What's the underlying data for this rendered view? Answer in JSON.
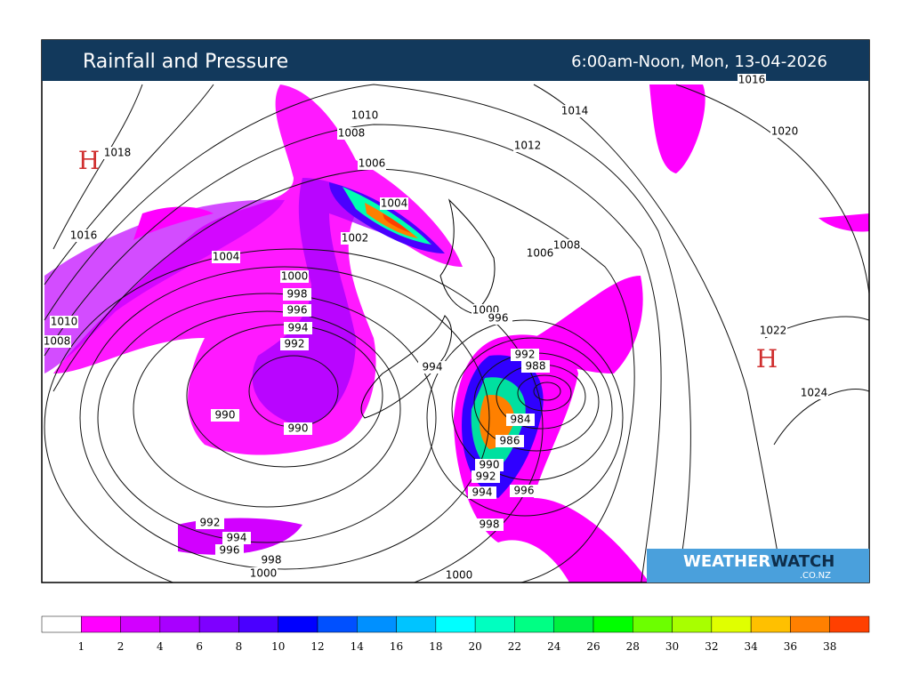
{
  "header": {
    "title": "Rainfall and Pressure",
    "period": "6:00am-Noon, Mon, 13-04-2026"
  },
  "highs": [
    "H",
    "H"
  ],
  "isobar_labels": [
    1010,
    1008,
    1006,
    1004,
    1002,
    1004,
    1000,
    998,
    996,
    994,
    992,
    990,
    990,
    994,
    1000,
    996,
    1018,
    1016,
    1010,
    1008,
    1012,
    1014,
    1020,
    1022,
    1024,
    1008,
    1006,
    992,
    988,
    984,
    986,
    990,
    992,
    994,
    996,
    998,
    992,
    994,
    996,
    998,
    1000,
    1000,
    1016
  ],
  "logo": {
    "part1": "WEATHER",
    "part2": "WATCH",
    "domain": ".CO.NZ"
  },
  "legend": {
    "ticks": [
      1,
      2,
      4,
      6,
      8,
      10,
      12,
      14,
      16,
      18,
      20,
      22,
      24,
      26,
      28,
      30,
      32,
      34,
      36,
      38
    ],
    "colors": [
      "#ffffff",
      "#ff00ff",
      "#d200ff",
      "#a800ff",
      "#7e00ff",
      "#4a00ff",
      "#0000ff",
      "#0050ff",
      "#0090ff",
      "#00c4ff",
      "#00ffff",
      "#00ffc0",
      "#00ff84",
      "#00f040",
      "#00ff00",
      "#6cff00",
      "#a8ff00",
      "#e0ff00",
      "#ffc000",
      "#ff8000",
      "#ff4000"
    ]
  }
}
